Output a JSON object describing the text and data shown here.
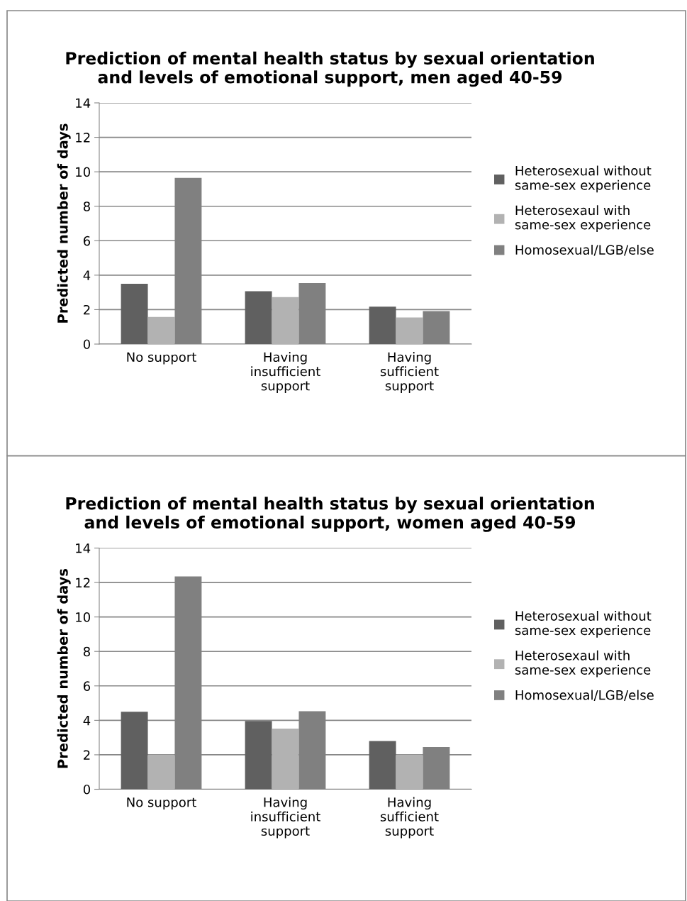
{
  "chart_data": [
    {
      "type": "bar",
      "title": "Prediction of mental health status by sexual orientation\nand levels of emotional support, men aged 40-59",
      "ylabel": "Predicted number of days",
      "categories": [
        "No support",
        "Having\ninsufficient\nsupport",
        "Having\nsufficient\nsupport"
      ],
      "series": [
        {
          "name": "Heterosexual without\nsame-sex experience",
          "color": "#606060",
          "values": [
            3.5,
            3.07,
            2.17
          ]
        },
        {
          "name": "Heterosexaul with\nsame-sex experience",
          "color": "#b2b2b2",
          "values": [
            1.57,
            2.73,
            1.54
          ]
        },
        {
          "name": "Homosexual/LGB/else",
          "color": "#808080",
          "values": [
            9.65,
            3.54,
            1.91
          ]
        }
      ],
      "ylim": [
        0,
        14
      ],
      "yticks": [
        0,
        2,
        4,
        6,
        8,
        10,
        12,
        14
      ],
      "grid": "y",
      "legend": "right"
    },
    {
      "type": "bar",
      "title": "Prediction of mental health status by sexual orientation\nand levels of emotional support, women aged 40-59",
      "ylabel": "Predicted number of days",
      "categories": [
        "No support",
        "Having\ninsufficient\nsupport",
        "Having\nsufficient\nsupport"
      ],
      "series": [
        {
          "name": "Heterosexual without\nsame-sex experience",
          "color": "#606060",
          "values": [
            4.5,
            3.96,
            2.8
          ]
        },
        {
          "name": "Heterosexaul with\nsame-sex experience",
          "color": "#b2b2b2",
          "values": [
            2.01,
            3.52,
            2.01
          ]
        },
        {
          "name": "Homosexual/LGB/else",
          "color": "#808080",
          "values": [
            12.35,
            4.53,
            2.45
          ]
        }
      ],
      "ylim": [
        0,
        14
      ],
      "yticks": [
        0,
        2,
        4,
        6,
        8,
        10,
        12,
        14
      ],
      "grid": "y",
      "legend": "right"
    }
  ]
}
